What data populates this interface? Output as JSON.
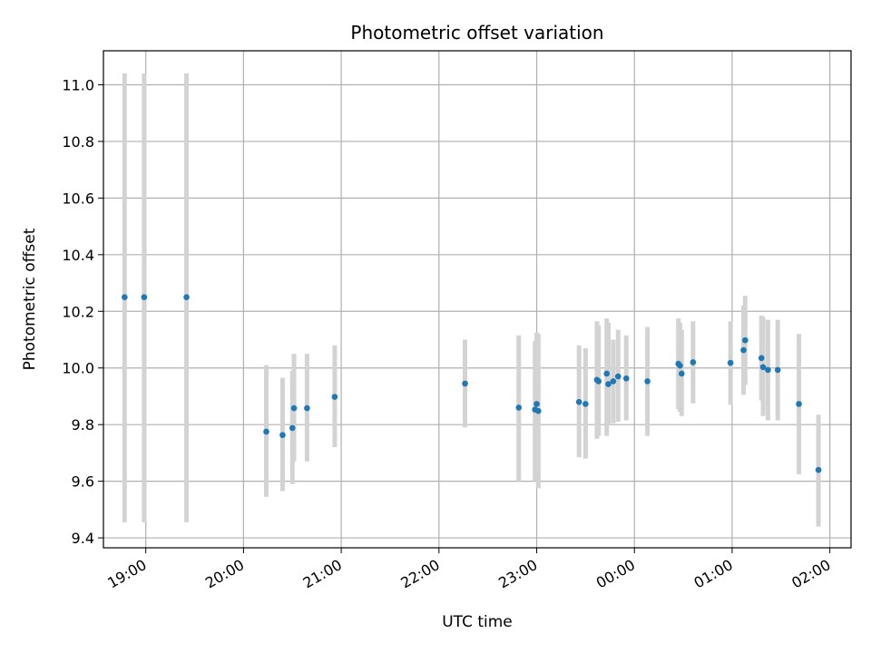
{
  "chart_data": {
    "type": "scatter",
    "title": "Photometric offset variation",
    "xlabel": "UTC time",
    "ylabel": "Photometric offset",
    "x_ticks": [
      "19:00",
      "20:00",
      "21:00",
      "22:00",
      "23:00",
      "00:00",
      "01:00",
      "02:00"
    ],
    "y_ticks": [
      "9.4",
      "9.6",
      "9.8",
      "10.0",
      "10.2",
      "10.4",
      "10.6",
      "10.8",
      "11.0"
    ],
    "xlim": [
      "18:34",
      "02:13"
    ],
    "ylim": [
      9.365,
      11.12
    ],
    "grid": true,
    "point_color": "#1f77b4",
    "errorbar_color": "#d3d3d3",
    "points": [
      {
        "t": "18:47",
        "y": 10.25,
        "lo": 9.455,
        "hi": 11.04
      },
      {
        "t": "18:59",
        "y": 10.25,
        "lo": 9.455,
        "hi": 11.04
      },
      {
        "t": "19:25",
        "y": 10.25,
        "lo": 9.455,
        "hi": 11.04
      },
      {
        "t": "20:14",
        "y": 9.775,
        "lo": 9.545,
        "hi": 10.01
      },
      {
        "t": "20:24",
        "y": 9.763,
        "lo": 9.565,
        "hi": 9.965
      },
      {
        "t": "20:30",
        "y": 9.788,
        "lo": 9.59,
        "hi": 9.99
      },
      {
        "t": "20:31",
        "y": 9.858,
        "lo": 9.67,
        "hi": 10.05
      },
      {
        "t": "20:39",
        "y": 9.858,
        "lo": 9.67,
        "hi": 10.05
      },
      {
        "t": "20:56",
        "y": 9.898,
        "lo": 9.72,
        "hi": 10.08
      },
      {
        "t": "22:16",
        "y": 9.945,
        "lo": 9.79,
        "hi": 10.1
      },
      {
        "t": "22:49",
        "y": 9.86,
        "lo": 9.6,
        "hi": 10.115
      },
      {
        "t": "22:59",
        "y": 9.853,
        "lo": 9.6,
        "hi": 10.095
      },
      {
        "t": "23:00",
        "y": 9.873,
        "lo": 9.62,
        "hi": 10.125
      },
      {
        "t": "23:01",
        "y": 9.848,
        "lo": 9.575,
        "hi": 10.12
      },
      {
        "t": "23:26",
        "y": 9.88,
        "lo": 9.685,
        "hi": 10.08
      },
      {
        "t": "23:30",
        "y": 9.873,
        "lo": 9.68,
        "hi": 10.07
      },
      {
        "t": "23:37",
        "y": 9.958,
        "lo": 9.75,
        "hi": 10.165
      },
      {
        "t": "23:38",
        "y": 9.953,
        "lo": 9.76,
        "hi": 10.15
      },
      {
        "t": "23:43",
        "y": 9.98,
        "lo": 9.76,
        "hi": 10.175
      },
      {
        "t": "23:44",
        "y": 9.943,
        "lo": 9.8,
        "hi": 10.16
      },
      {
        "t": "23:47",
        "y": 9.953,
        "lo": 9.805,
        "hi": 10.1
      },
      {
        "t": "23:50",
        "y": 9.97,
        "lo": 9.81,
        "hi": 10.135
      },
      {
        "t": "23:55",
        "y": 9.963,
        "lo": 9.815,
        "hi": 10.115
      },
      {
        "t": "00:08",
        "y": 9.953,
        "lo": 9.76,
        "hi": 10.145
      },
      {
        "t": "00:27",
        "y": 10.015,
        "lo": 9.855,
        "hi": 10.175
      },
      {
        "t": "00:28",
        "y": 10.008,
        "lo": 9.845,
        "hi": 10.16
      },
      {
        "t": "00:29",
        "y": 9.98,
        "lo": 9.83,
        "hi": 10.135
      },
      {
        "t": "00:36",
        "y": 10.02,
        "lo": 9.875,
        "hi": 10.165
      },
      {
        "t": "00:59",
        "y": 10.018,
        "lo": 9.87,
        "hi": 10.165
      },
      {
        "t": "01:07",
        "y": 10.063,
        "lo": 9.905,
        "hi": 10.22
      },
      {
        "t": "01:08",
        "y": 10.098,
        "lo": 9.94,
        "hi": 10.255
      },
      {
        "t": "01:18",
        "y": 10.035,
        "lo": 9.885,
        "hi": 10.185
      },
      {
        "t": "01:19",
        "y": 10.003,
        "lo": 9.83,
        "hi": 10.18
      },
      {
        "t": "01:22",
        "y": 9.993,
        "lo": 9.815,
        "hi": 10.17
      },
      {
        "t": "01:28",
        "y": 9.993,
        "lo": 9.815,
        "hi": 10.17
      },
      {
        "t": "01:41",
        "y": 9.873,
        "lo": 9.625,
        "hi": 10.12
      },
      {
        "t": "01:53",
        "y": 9.64,
        "lo": 9.44,
        "hi": 9.835
      }
    ]
  }
}
